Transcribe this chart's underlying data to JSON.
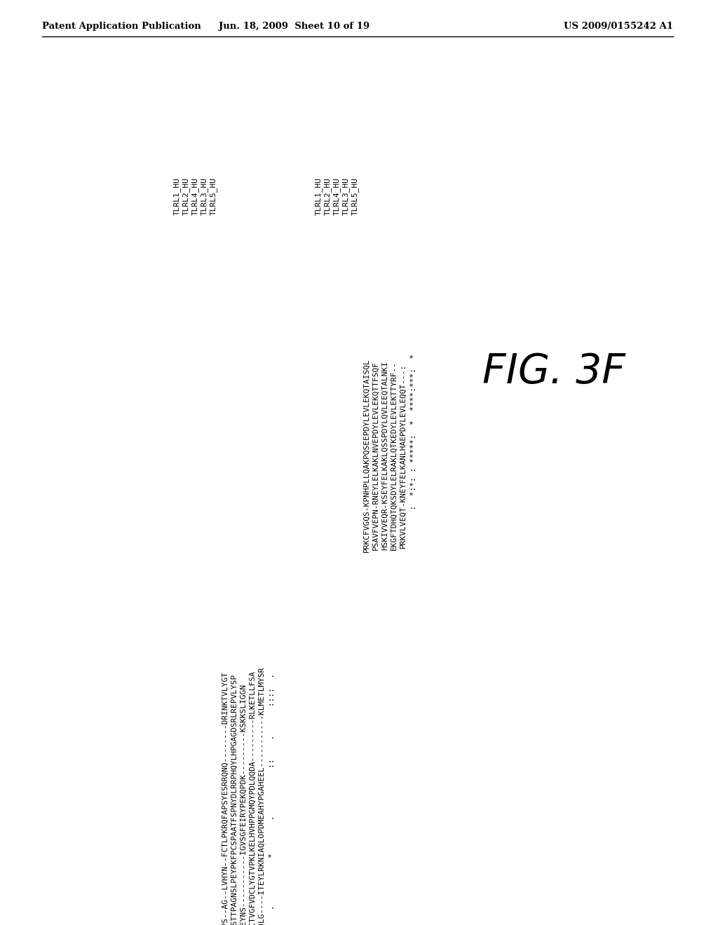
{
  "header_left": "Patent Application Publication",
  "header_mid": "Jun. 18, 2009  Sheet 10 of 19",
  "header_right": "US 2009/0155242 A1",
  "figure_label": "FIG. 3F",
  "background_color": "#ffffff",
  "text_color": "#000000",
  "block1_label_lines": [
    "TLRL1_HU",
    "TLRL2_HU",
    "TLRL4_HU",
    "TLRL3_HU",
    "TLRL5_HU"
  ],
  "block1_seq_lines": [
    "ERVKELPS--AG--LVHYN--FCTLPKRQFAPSYESRRQNQ--------DRINKTVLYGT",
    "EPDKHCSTTPAGNSLPEYPKFPCSPAATFSPNYDLRRPHQYLHPGAGDSRLREPVLYSP",
    "ESSKEYNS-----------IGVSGFEIRYPEKQPDK---------KSKKSLIGGN",
    "RPQPAPCTVGFVDCLYGTVPKLKELHVHPPGMQYPDLQQDA---------RLKETLLFSA",
    "EKERELQQLG----ITEYLRKNIAQLOPDMEAHYPGAHEEL-----------KLMETLMYSR"
  ],
  "block1_cons": "         .          *       .          ::    .      ::::  .",
  "block2_label_lines": [
    "TLRL1_HU",
    "TLRL2_HU",
    "TLRL4_HU",
    "TLRL3_HU",
    "TLRL5_HU"
  ],
  "block2_seq_lines": [
    "PRKCFVGQS-KPNHPLLQAKPQSEEPDYLEVLEKQTAISQL",
    "PSAVFVEPN-RNEYLELKAKLNVEPDYLEVLEKQTTFSQF",
    "HSKIVVEQR-KSEYFELKAKLQSSPDYLQVLEEQTALNKI",
    "EKGFTDHQTQKSDYLELRAKLQTKEDYLEVLEKTTYRF--",
    "PRKVLVEQT-KNEYFELKANLHAEPDYLEVLEQQT---:"
  ],
  "block2_cons": "          :  *:*: : *****:  *  ****:***:  *",
  "font_size": 8.0
}
